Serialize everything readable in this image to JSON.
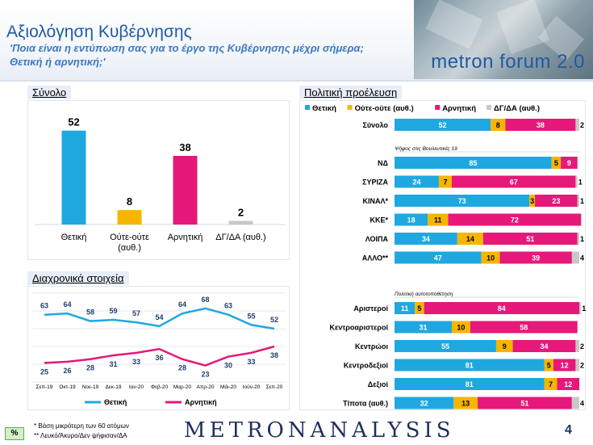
{
  "header": {
    "title": "Αξιολόγηση Κυβέρνησης",
    "subtitle": "'Ποια είναι η εντύπωση σας για το έργο της Κυβέρνησης μέχρι σήμερα; Θετική ή αρνητική;'",
    "brand": "metron forum 2.0"
  },
  "colors": {
    "positive": "#1fa8e0",
    "neutral": "#f7b500",
    "negative": "#e6187a",
    "dk": "#c8c8c8"
  },
  "chart_data": [
    {
      "type": "bar",
      "title": "Σύνολο",
      "categories": [
        "Θετική",
        "Ούτε-ούτε (αυθ.)",
        "Αρνητική",
        "ΔΓ/ΔΑ (αυθ.)"
      ],
      "values": [
        52,
        8,
        38,
        2
      ],
      "ylim": [
        0,
        55
      ]
    },
    {
      "type": "line",
      "title": "Διαχρονικά στοιχεία",
      "x": [
        "Σεπ-19",
        "Οκτ-19",
        "Νοε-19",
        "Δεκ-19",
        "Ιαν-20",
        "Φεβ-20",
        "Μαρ-20",
        "Απρ-20",
        "Μάι-20",
        "Ιούν-20",
        "Σεπ-20"
      ],
      "series": [
        {
          "name": "Θετική",
          "values": [
            63,
            64,
            58,
            59,
            57,
            54,
            64,
            68,
            63,
            55,
            52
          ]
        },
        {
          "name": "Αρνητική",
          "values": [
            25,
            26,
            28,
            31,
            33,
            36,
            28,
            23,
            30,
            33,
            38
          ]
        }
      ],
      "ylim": [
        10,
        80
      ]
    },
    {
      "type": "bar",
      "orientation": "horizontal-stacked",
      "title": "Πολιτική προέλευση",
      "legend": [
        "Θετική",
        "Ούτε-ούτε (αυθ.)",
        "Αρνητική",
        "ΔΓ/ΔΑ (αυθ.)"
      ],
      "xlim": [
        0,
        100
      ],
      "groups": [
        {
          "label": "",
          "rows": [
            {
              "name": "Σύνολο",
              "values": [
                52,
                8,
                38,
                2
              ]
            }
          ]
        },
        {
          "label": "Ψήφος στις Βουλευτικές 19",
          "rows": [
            {
              "name": "ΝΔ",
              "values": [
                85,
                5,
                9,
                0
              ]
            },
            {
              "name": "ΣΥΡΙΖΑ",
              "values": [
                24,
                7,
                67,
                1
              ]
            },
            {
              "name": "ΚΙΝΑΛ*",
              "values": [
                73,
                3,
                23,
                1
              ]
            },
            {
              "name": "ΚΚΕ*",
              "values": [
                18,
                11,
                72,
                0
              ]
            },
            {
              "name": "ΛΟΙΠΑ",
              "values": [
                34,
                14,
                51,
                1
              ]
            },
            {
              "name": "ΑΛΛΟ**",
              "values": [
                47,
                10,
                39,
                4
              ]
            }
          ]
        },
        {
          "label": "Πολιτική αυτοτοποθέτηση",
          "rows": [
            {
              "name": "Αριστεροί",
              "values": [
                11,
                5,
                84,
                1
              ]
            },
            {
              "name": "Κεντροαριστεροί",
              "values": [
                31,
                10,
                58,
                0
              ]
            },
            {
              "name": "Κεντρώοι",
              "values": [
                55,
                9,
                34,
                2
              ]
            },
            {
              "name": "Κεντροδεξιοί",
              "values": [
                81,
                5,
                12,
                2
              ]
            },
            {
              "name": "Δεξιοί",
              "values": [
                81,
                7,
                12,
                0
              ]
            },
            {
              "name": "Τίποτα (αυθ.)",
              "values": [
                32,
                13,
                51,
                4
              ]
            }
          ]
        }
      ]
    }
  ],
  "footer": {
    "badge": "%",
    "note1": "*  Βάση μικρότερη των 60 ατόμων",
    "note2": "** Λευκό/Άκυρο/Δεν ψήφισαν/ΔΑ",
    "logo": "METRONANALYSIS",
    "page": "4"
  }
}
